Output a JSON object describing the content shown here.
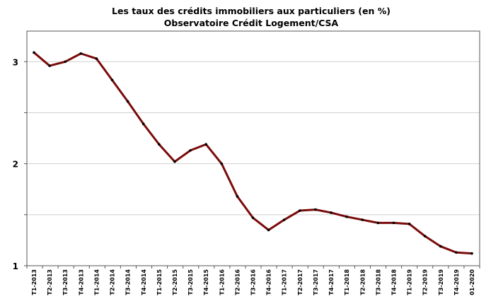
{
  "chart_data": {
    "type": "line",
    "title": "Les taux des crédits immobiliers aux particuliers (en %)",
    "subtitle": "Observatoire Crédit Logement/CSA",
    "xlabel": "",
    "ylabel": "",
    "ylim": [
      1,
      3.3
    ],
    "yticks": [
      1,
      2,
      3
    ],
    "grid": true,
    "legend": "none",
    "line_color": "#7a0a0a",
    "marker_color": "#000000",
    "categories": [
      "T1-2013",
      "T2-2013",
      "T3-2013",
      "T4-2013",
      "T1-2014",
      "T2-2014",
      "T3-2014",
      "T4-2014",
      "T1-2015",
      "T2-2015",
      "T3-2015",
      "T4-2015",
      "T1-2016",
      "T2-2016",
      "T3-2016",
      "T4-2016",
      "T1-2017",
      "T2-2017",
      "T3-2017",
      "T4-2017",
      "T1-2018",
      "T2-2018",
      "T3-2018",
      "T4-2018",
      "T1-2019",
      "T2-2019",
      "T3-2019",
      "T4-2019",
      "01-2020"
    ],
    "values": [
      3.09,
      2.96,
      3.0,
      3.08,
      3.03,
      2.82,
      2.61,
      2.39,
      2.19,
      2.02,
      2.13,
      2.19,
      2.0,
      1.68,
      1.47,
      1.35,
      1.45,
      1.54,
      1.55,
      1.52,
      1.48,
      1.45,
      1.42,
      1.42,
      1.41,
      1.29,
      1.19,
      1.13,
      1.12
    ]
  }
}
